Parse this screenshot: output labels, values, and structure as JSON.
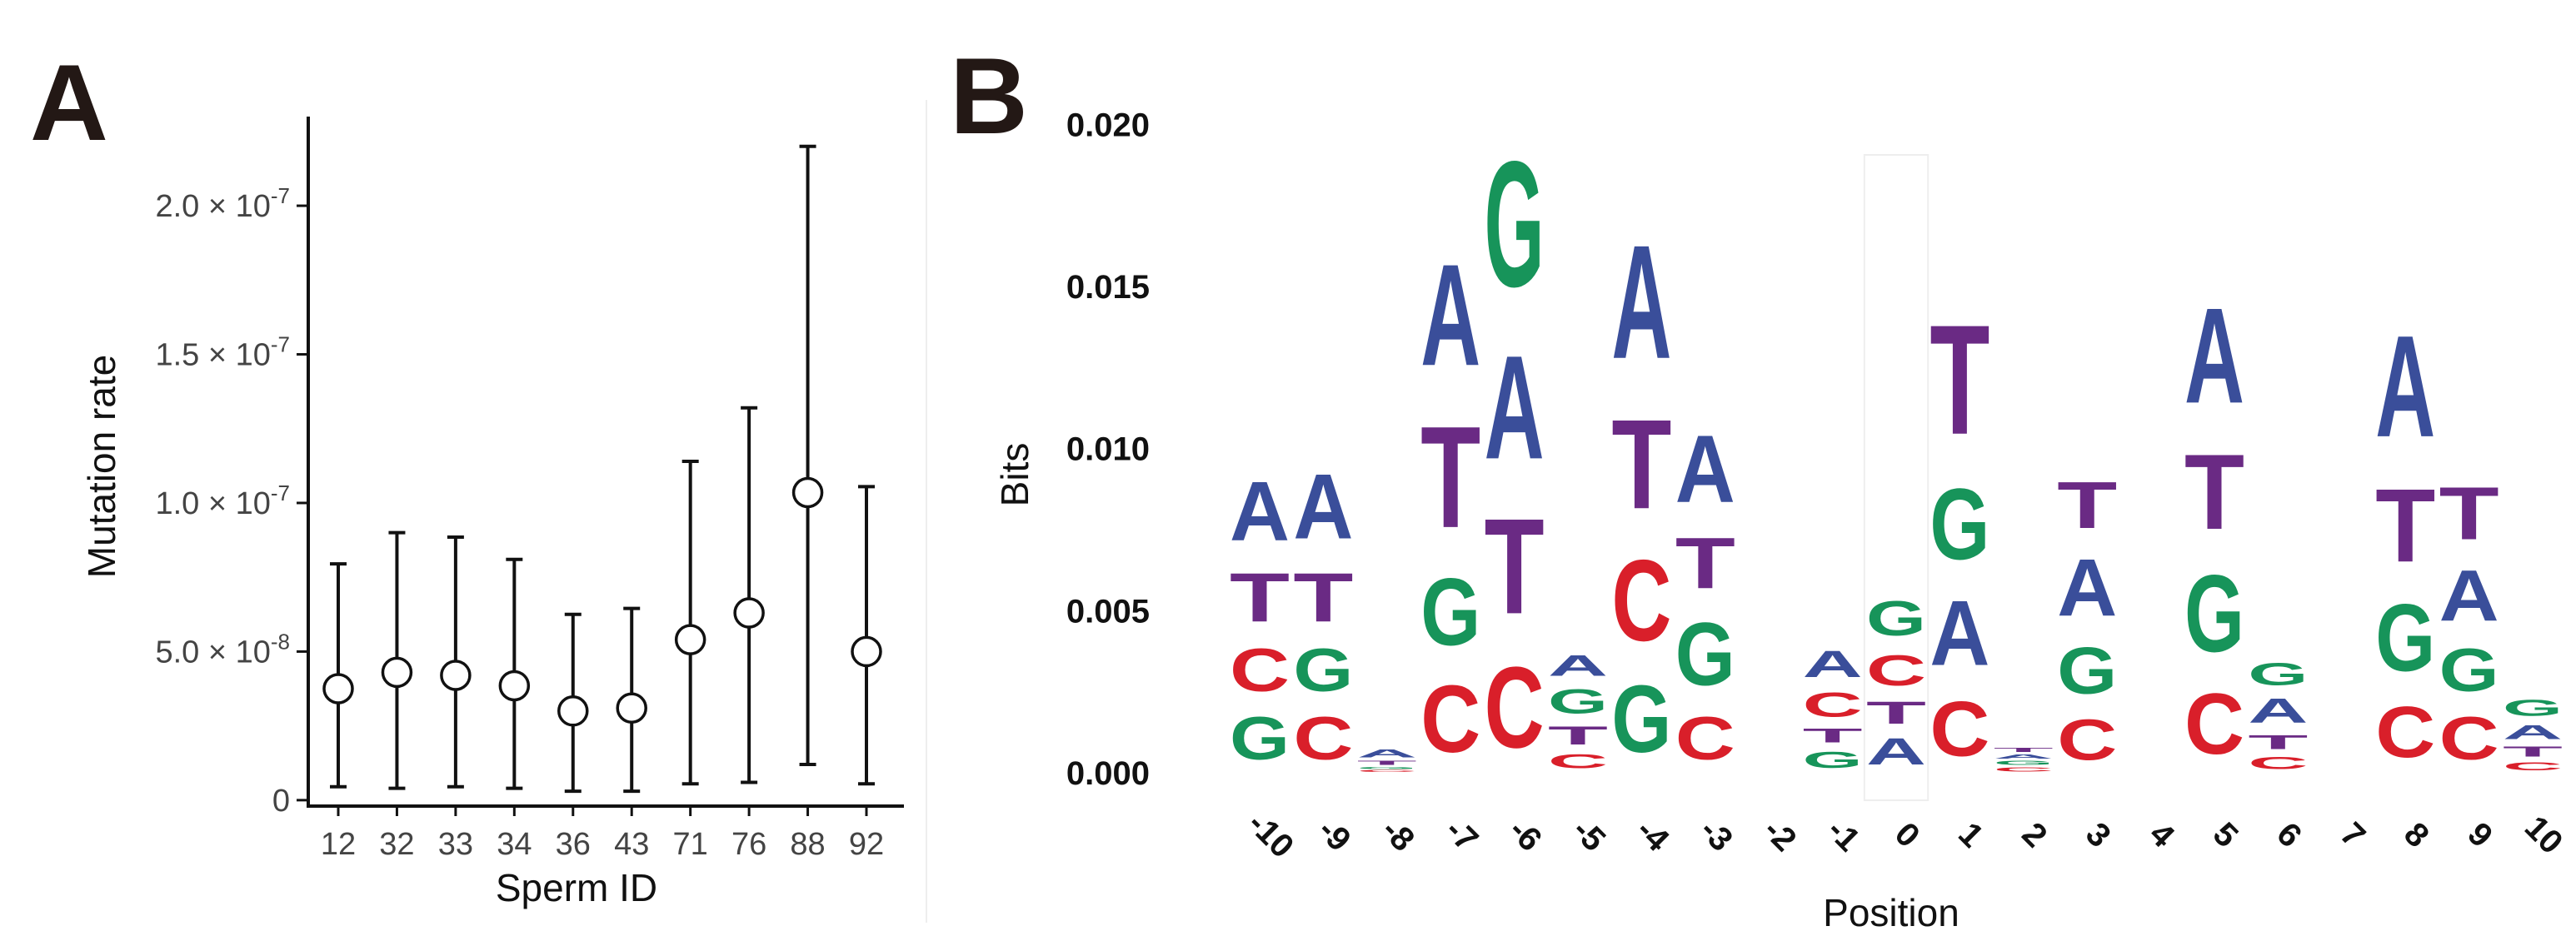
{
  "panels": {
    "a_label": "A",
    "b_label": "B"
  },
  "colors": {
    "A": "#3a4e9a",
    "C": "#d91f2a",
    "G": "#17945a",
    "T": "#6a2a84",
    "axis": "#111111",
    "point_fill": "#ffffff"
  },
  "chart_data": [
    {
      "type": "scatter",
      "subtype": "point-with-error-bars",
      "xlabel": "Sperm ID",
      "ylabel": "Mutation rate",
      "categories": [
        "12",
        "32",
        "33",
        "34",
        "36",
        "43",
        "71",
        "76",
        "88",
        "92"
      ],
      "values": [
        3.75e-08,
        4.3e-08,
        4.2e-08,
        3.85e-08,
        3e-08,
        3.1e-08,
        5.4e-08,
        6.3e-08,
        1.035e-07,
        5e-08
      ],
      "error_low": [
        4.5e-09,
        4e-09,
        4.5e-09,
        4e-09,
        3e-09,
        3e-09,
        5.5e-09,
        6e-09,
        1.2e-08,
        5.5e-09
      ],
      "error_high": [
        7.95e-08,
        9e-08,
        8.85e-08,
        8.1e-08,
        6.25e-08,
        6.45e-08,
        1.14e-07,
        1.32e-07,
        2.2e-07,
        1.055e-07
      ],
      "ylim": [
        -2e-09,
        2.3e-07
      ],
      "yticks": [
        {
          "value": 0,
          "base": "0",
          "exp": ""
        },
        {
          "value": 5e-08,
          "base": "5.0 × 10",
          "exp": "-8"
        },
        {
          "value": 1e-07,
          "base": "1.0 × 10",
          "exp": "-7"
        },
        {
          "value": 1.5e-07,
          "base": "1.5 × 10",
          "exp": "-7"
        },
        {
          "value": 2e-07,
          "base": "2.0 × 10",
          "exp": "-7"
        }
      ],
      "grid": false
    },
    {
      "type": "sequence-logo",
      "xlabel": "Position",
      "ylabel": "Bits",
      "ylim": [
        0,
        0.0205
      ],
      "yticks": [
        "0.000",
        "0.005",
        "0.010",
        "0.015",
        "0.020"
      ],
      "ytick_values": [
        0,
        0.005,
        0.01,
        0.015,
        0.02
      ],
      "highlight_position": "0",
      "positions": [
        {
          "pos": "-10",
          "stack": [
            [
              "G",
              0.0021
            ],
            [
              "C",
              0.0021
            ],
            [
              "T",
              0.0024
            ],
            [
              "A",
              0.0029
            ]
          ]
        },
        {
          "pos": "-9",
          "stack": [
            [
              "C",
              0.0021
            ],
            [
              "G",
              0.0021
            ],
            [
              "T",
              0.0024
            ],
            [
              "A",
              0.0032
            ]
          ]
        },
        {
          "pos": "-8",
          "stack": [
            [
              "C",
              0.0001
            ],
            [
              "G",
              0.0001
            ],
            [
              "T",
              0.0002
            ],
            [
              "A",
              0.0004
            ]
          ]
        },
        {
          "pos": "-7",
          "stack": [
            [
              "C",
              0.0033
            ],
            [
              "G",
              0.0033
            ],
            [
              "T",
              0.005
            ],
            [
              "A",
              0.005
            ]
          ]
        },
        {
          "pos": "-6",
          "stack": [
            [
              "C",
              0.004
            ],
            [
              "T",
              0.0047
            ],
            [
              "A",
              0.0051
            ],
            [
              "G",
              0.0062
            ]
          ]
        },
        {
          "pos": "-5",
          "stack": [
            [
              "C",
              0.0007
            ],
            [
              "T",
              0.0009
            ],
            [
              "G",
              0.0012
            ],
            [
              "A",
              0.001
            ]
          ]
        },
        {
          "pos": "-4",
          "stack": [
            [
              "G",
              0.0033
            ],
            [
              "C",
              0.004
            ],
            [
              "T",
              0.0044
            ],
            [
              "A",
              0.0056
            ]
          ]
        },
        {
          "pos": "-3",
          "stack": [
            [
              "C",
              0.0021
            ],
            [
              "G",
              0.0031
            ],
            [
              "T",
              0.0025
            ],
            [
              "A",
              0.0033
            ]
          ]
        },
        {
          "pos": "-2",
          "stack": []
        },
        {
          "pos": "-1",
          "stack": [
            [
              "G",
              0.0008
            ],
            [
              "T",
              0.0007
            ],
            [
              "C",
              0.0012
            ],
            [
              "A",
              0.0013
            ]
          ]
        },
        {
          "pos": "0",
          "stack": [
            [
              "A",
              0.0013
            ],
            [
              "T",
              0.0011
            ],
            [
              "C",
              0.0015
            ],
            [
              "G",
              0.0017
            ]
          ]
        },
        {
          "pos": "1",
          "stack": [
            [
              "C",
              0.0027
            ],
            [
              "A",
              0.0032
            ],
            [
              "G",
              0.0035
            ],
            [
              "T",
              0.0054
            ]
          ]
        },
        {
          "pos": "2",
          "stack": [
            [
              "C",
              0.0002
            ],
            [
              "G",
              0.0002
            ],
            [
              "A",
              0.0002
            ],
            [
              "T",
              0.0002
            ]
          ]
        },
        {
          "pos": "3",
          "stack": [
            [
              "C",
              0.002
            ],
            [
              "G",
              0.0023
            ],
            [
              "A",
              0.0028
            ],
            [
              "T",
              0.0023
            ]
          ]
        },
        {
          "pos": "4",
          "stack": []
        },
        {
          "pos": "5",
          "stack": [
            [
              "C",
              0.003
            ],
            [
              "G",
              0.0038
            ],
            [
              "T",
              0.0037
            ],
            [
              "A",
              0.0047
            ]
          ]
        },
        {
          "pos": "6",
          "stack": [
            [
              "C",
              0.0006
            ],
            [
              "T",
              0.0007
            ],
            [
              "A",
              0.0012
            ],
            [
              "G",
              0.0011
            ]
          ]
        },
        {
          "pos": "7",
          "stack": []
        },
        {
          "pos": "8",
          "stack": [
            [
              "C",
              0.0025
            ],
            [
              "G",
              0.0033
            ],
            [
              "T",
              0.0036
            ],
            [
              "A",
              0.005
            ]
          ]
        },
        {
          "pos": "9",
          "stack": [
            [
              "C",
              0.0021
            ],
            [
              "G",
              0.0021
            ],
            [
              "A",
              0.0025
            ],
            [
              "T",
              0.0026
            ]
          ]
        },
        {
          "pos": "10",
          "stack": [
            [
              "C",
              0.0004
            ],
            [
              "T",
              0.0005
            ],
            [
              "A",
              0.0007
            ],
            [
              "G",
              0.0008
            ]
          ]
        }
      ]
    }
  ]
}
